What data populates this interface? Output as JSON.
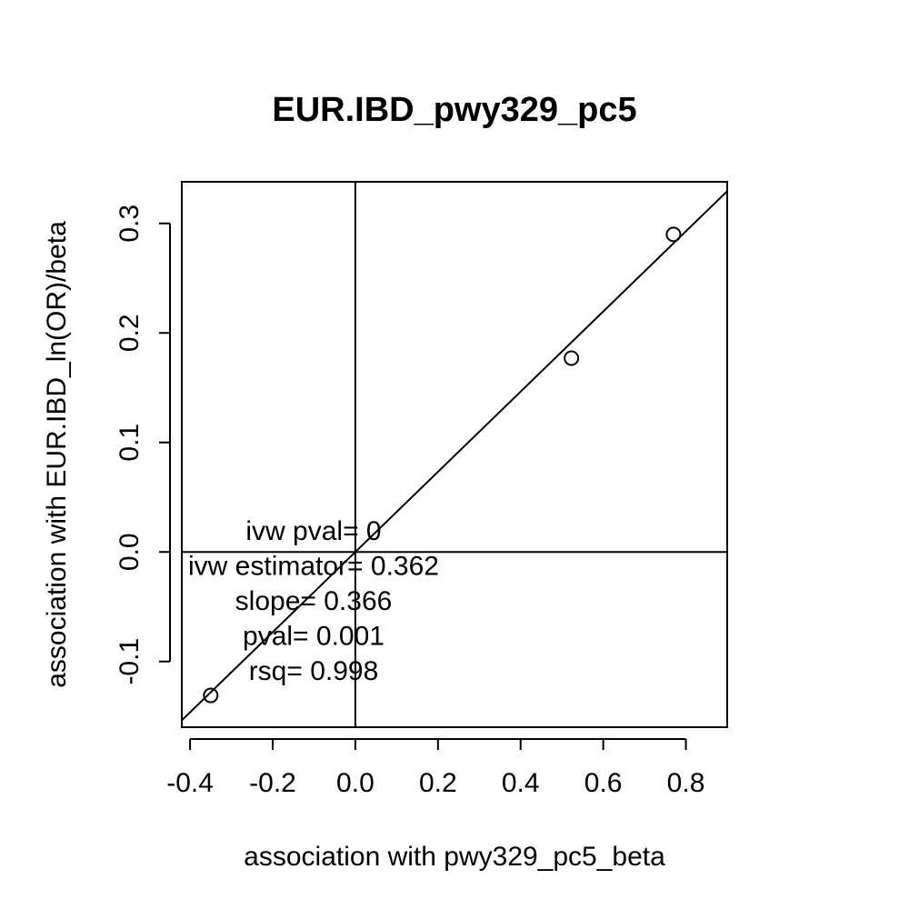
{
  "chart_data": {
    "type": "scatter",
    "title": "EUR.IBD_pwy329_pc5",
    "xlabel": "association with pwy329_pc5_beta",
    "ylabel": "association with EUR.IBD_ln(OR)/beta",
    "xlim": [
      -0.42,
      0.9
    ],
    "ylim": [
      -0.16,
      0.338
    ],
    "x_ticks": [
      -0.4,
      -0.2,
      0.0,
      0.2,
      0.4,
      0.6,
      0.8
    ],
    "x_tick_labels": [
      "-0.4",
      "-0.2",
      "0.0",
      "0.2",
      "0.4",
      "0.6",
      "0.8"
    ],
    "y_ticks": [
      -0.1,
      0.0,
      0.1,
      0.2,
      0.3
    ],
    "y_tick_labels": [
      "-0.1",
      "0.0",
      "0.1",
      "0.2",
      "0.3"
    ],
    "points": [
      {
        "x": -0.35,
        "y": -0.131
      },
      {
        "x": 0.523,
        "y": 0.177
      },
      {
        "x": 0.77,
        "y": 0.29
      }
    ],
    "fit_line": {
      "intercept": 0,
      "slope": 0.366
    },
    "reference_lines": {
      "vertical_x": 0,
      "horizontal_y": 0
    },
    "annotations": [
      "ivw pval= 0",
      "ivw estimator= 0.362",
      "slope= 0.366",
      "pval= 0.001",
      "rsq= 0.998"
    ],
    "grid": false,
    "legend": "none"
  }
}
